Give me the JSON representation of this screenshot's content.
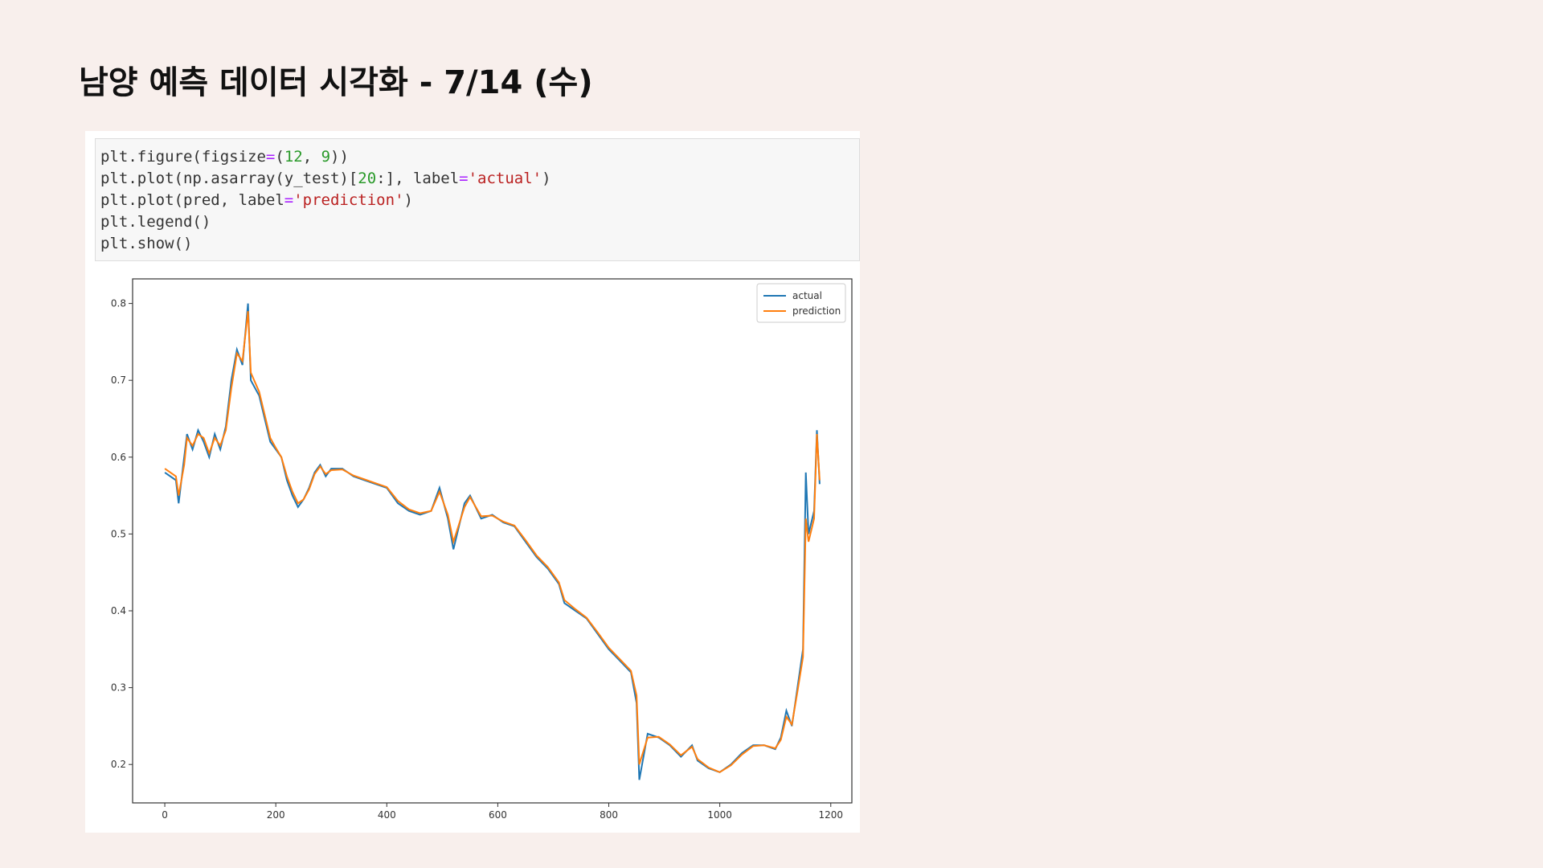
{
  "title": "남양 예측 데이터 시각화 - 7/14 (수)",
  "code": [
    [
      {
        "text": "plt.figure(figsize"
      },
      {
        "text": "=",
        "color": "#aa22ff"
      },
      {
        "text": "("
      },
      {
        "text": "12",
        "color": "#2a9a2a"
      },
      {
        "text": ", "
      },
      {
        "text": "9",
        "color": "#2a9a2a"
      },
      {
        "text": "))"
      }
    ],
    [
      {
        "text": "plt.plot(np.asarray(y_test)["
      },
      {
        "text": "20",
        "color": "#2a9a2a"
      },
      {
        "text": ":], label"
      },
      {
        "text": "=",
        "color": "#aa22ff"
      },
      {
        "text": "'actual'",
        "color": "#ba2121"
      },
      {
        "text": ")"
      }
    ],
    [
      {
        "text": "plt.plot(pred, label"
      },
      {
        "text": "=",
        "color": "#aa22ff"
      },
      {
        "text": "'prediction'",
        "color": "#ba2121"
      },
      {
        "text": ")"
      }
    ],
    [
      {
        "text": "plt.legend()"
      }
    ],
    [
      {
        "text": "plt.show()"
      }
    ]
  ],
  "chart_data": {
    "type": "line",
    "x": [
      0,
      20,
      25,
      35,
      40,
      50,
      60,
      70,
      80,
      90,
      100,
      110,
      120,
      130,
      140,
      150,
      155,
      170,
      180,
      190,
      200,
      210,
      220,
      230,
      240,
      250,
      260,
      270,
      280,
      290,
      300,
      320,
      340,
      360,
      380,
      400,
      420,
      440,
      460,
      480,
      495,
      510,
      520,
      540,
      550,
      570,
      590,
      610,
      630,
      650,
      670,
      690,
      710,
      720,
      740,
      760,
      780,
      800,
      820,
      840,
      850,
      855,
      870,
      890,
      910,
      930,
      950,
      960,
      980,
      1000,
      1020,
      1040,
      1060,
      1080,
      1100,
      1110,
      1120,
      1130,
      1140,
      1150,
      1155,
      1160,
      1170,
      1175,
      1180
    ],
    "series": [
      {
        "name": "actual",
        "color": "#1f77b4",
        "values": [
          0.58,
          0.57,
          0.54,
          0.6,
          0.63,
          0.61,
          0.635,
          0.62,
          0.6,
          0.63,
          0.61,
          0.64,
          0.7,
          0.74,
          0.72,
          0.8,
          0.7,
          0.68,
          0.65,
          0.62,
          0.61,
          0.6,
          0.57,
          0.55,
          0.535,
          0.545,
          0.56,
          0.58,
          0.59,
          0.575,
          0.585,
          0.585,
          0.575,
          0.57,
          0.565,
          0.56,
          0.54,
          0.53,
          0.525,
          0.53,
          0.56,
          0.52,
          0.48,
          0.54,
          0.55,
          0.52,
          0.525,
          0.515,
          0.51,
          0.49,
          0.47,
          0.455,
          0.435,
          0.41,
          0.4,
          0.39,
          0.37,
          0.35,
          0.335,
          0.32,
          0.28,
          0.18,
          0.24,
          0.235,
          0.225,
          0.21,
          0.225,
          0.205,
          0.195,
          0.19,
          0.2,
          0.215,
          0.225,
          0.225,
          0.22,
          0.235,
          0.27,
          0.25,
          0.3,
          0.35,
          0.58,
          0.5,
          0.53,
          0.635,
          0.565
        ]
      },
      {
        "name": "prediction",
        "color": "#ff7f0e",
        "values": [
          0.585,
          0.575,
          0.55,
          0.59,
          0.625,
          0.615,
          0.63,
          0.625,
          0.605,
          0.625,
          0.615,
          0.635,
          0.69,
          0.735,
          0.725,
          0.79,
          0.71,
          0.685,
          0.655,
          0.625,
          0.612,
          0.6,
          0.575,
          0.555,
          0.54,
          0.545,
          0.558,
          0.578,
          0.588,
          0.578,
          0.583,
          0.584,
          0.576,
          0.571,
          0.566,
          0.561,
          0.543,
          0.532,
          0.527,
          0.53,
          0.555,
          0.525,
          0.49,
          0.535,
          0.548,
          0.523,
          0.524,
          0.516,
          0.511,
          0.492,
          0.472,
          0.457,
          0.437,
          0.414,
          0.402,
          0.391,
          0.372,
          0.352,
          0.337,
          0.322,
          0.29,
          0.2,
          0.235,
          0.236,
          0.226,
          0.212,
          0.223,
          0.207,
          0.196,
          0.19,
          0.199,
          0.213,
          0.224,
          0.225,
          0.221,
          0.232,
          0.262,
          0.252,
          0.295,
          0.34,
          0.52,
          0.49,
          0.52,
          0.63,
          0.57
        ]
      }
    ],
    "xlim": [
      -58,
      1238
    ],
    "ylim": [
      0.15,
      0.832
    ],
    "xticks": [
      0,
      200,
      400,
      600,
      800,
      1000,
      1200
    ],
    "yticks": [
      0.2,
      0.3,
      0.4,
      0.5,
      0.6,
      0.7,
      0.8
    ],
    "legend": "upper right"
  }
}
